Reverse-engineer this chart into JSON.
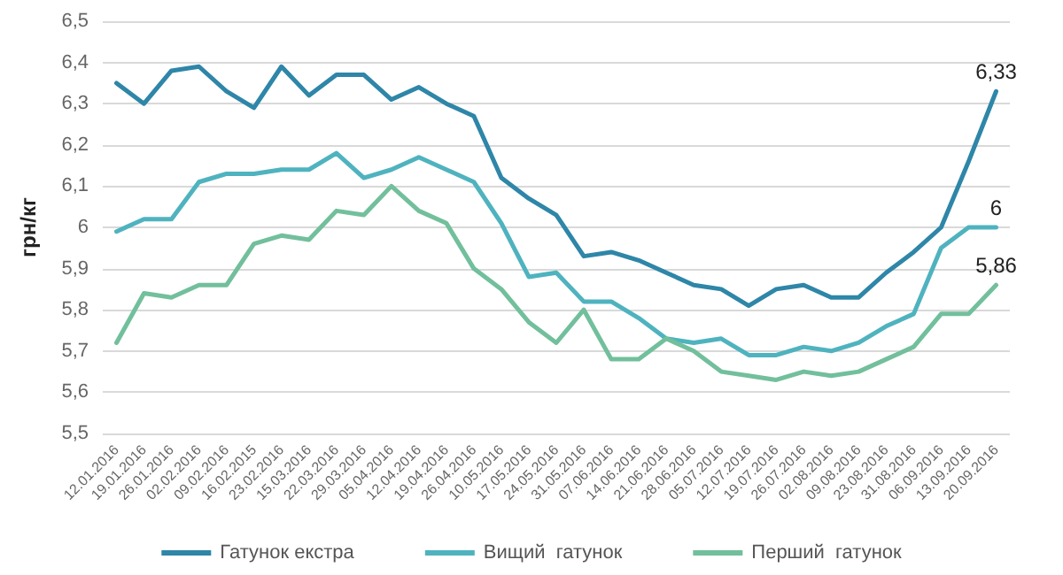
{
  "chart_data": {
    "type": "line",
    "ylabel": "грн/кг",
    "categories": [
      "12.01.2016",
      "19.01.2016",
      "26.01.2016",
      "02.02.2016",
      "09.02.2016",
      "16.02.2015",
      "23.02.2016",
      "15.03.2016",
      "22.03.2016",
      "29.03.2016",
      "05.04.2016",
      "12.04.2016",
      "19.04.2016",
      "26.04.2016",
      "10.05.2016",
      "17.05.2016",
      "24.05.2016",
      "31.05.2016",
      "07.06.2016",
      "14.06.2016",
      "21.06.2016",
      "28.06.2016",
      "05.07.2016",
      "12.07.2016",
      "19.07.2016",
      "26.07.2016",
      "02.08.2016",
      "09.08.2016",
      "23.08.2016",
      "31.08.2016",
      "06.09.2016",
      "13.09.2016",
      "20.09.2016"
    ],
    "series": [
      {
        "name": "Гатунок екстра",
        "color": "#2e86a8",
        "values": [
          6.35,
          6.3,
          6.38,
          6.39,
          6.33,
          6.29,
          6.39,
          6.32,
          6.37,
          6.37,
          6.31,
          6.34,
          6.3,
          6.27,
          6.12,
          6.07,
          6.03,
          5.93,
          5.94,
          5.92,
          5.89,
          5.86,
          5.85,
          5.81,
          5.85,
          5.86,
          5.83,
          5.83,
          5.89,
          5.94,
          6.0,
          6.16,
          6.33
        ],
        "value_labels": [
          null,
          null,
          null,
          null,
          null,
          null,
          null,
          null,
          null,
          null,
          null,
          null,
          null,
          null,
          null,
          null,
          null,
          null,
          null,
          null,
          null,
          null,
          null,
          null,
          null,
          null,
          null,
          null,
          null,
          null,
          null,
          null,
          "6,33"
        ]
      },
      {
        "name": "Вищий  гатунок",
        "color": "#4fb3bf",
        "values": [
          5.99,
          6.02,
          6.02,
          6.11,
          6.13,
          6.13,
          6.14,
          6.14,
          6.18,
          6.12,
          6.14,
          6.17,
          6.14,
          6.11,
          6.01,
          5.88,
          5.89,
          5.82,
          5.82,
          5.78,
          5.73,
          5.72,
          5.73,
          5.69,
          5.69,
          5.71,
          5.7,
          5.72,
          5.76,
          5.79,
          5.95,
          6.0,
          6.0
        ],
        "value_labels": [
          null,
          null,
          null,
          null,
          null,
          null,
          null,
          null,
          null,
          null,
          null,
          null,
          null,
          null,
          null,
          null,
          null,
          null,
          null,
          null,
          null,
          null,
          null,
          null,
          null,
          null,
          null,
          null,
          null,
          null,
          null,
          null,
          "6"
        ]
      },
      {
        "name": "Перший  гатунок",
        "color": "#72bf9c",
        "values": [
          5.72,
          5.84,
          5.83,
          5.86,
          5.86,
          5.96,
          5.98,
          5.97,
          6.04,
          6.03,
          6.1,
          6.04,
          6.01,
          5.9,
          5.85,
          5.77,
          5.72,
          5.8,
          5.68,
          5.68,
          5.73,
          5.7,
          5.65,
          5.64,
          5.63,
          5.65,
          5.64,
          5.65,
          5.68,
          5.71,
          5.79,
          5.79,
          5.86
        ],
        "value_labels": [
          null,
          null,
          null,
          null,
          null,
          null,
          null,
          null,
          null,
          null,
          null,
          null,
          null,
          null,
          null,
          null,
          null,
          null,
          null,
          null,
          null,
          null,
          null,
          null,
          null,
          null,
          null,
          null,
          null,
          null,
          null,
          null,
          "5,86"
        ]
      }
    ],
    "ylim": [
      5.5,
      6.5
    ],
    "yticks": [
      {
        "value": 5.5,
        "label": "5,5"
      },
      {
        "value": 5.6,
        "label": "5,6"
      },
      {
        "value": 5.7,
        "label": "5,7"
      },
      {
        "value": 5.8,
        "label": "5,8"
      },
      {
        "value": 5.9,
        "label": "5,9"
      },
      {
        "value": 6,
        "label": "6"
      },
      {
        "value": 6.1,
        "label": "6,1"
      },
      {
        "value": 6.2,
        "label": "6,2"
      },
      {
        "value": 6.3,
        "label": "6,3"
      },
      {
        "value": 6.4,
        "label": "6,4"
      },
      {
        "value": 6.5,
        "label": "6,5"
      }
    ],
    "grid": "y",
    "legend": "bottom",
    "marker": "none",
    "line_style": "solid"
  }
}
